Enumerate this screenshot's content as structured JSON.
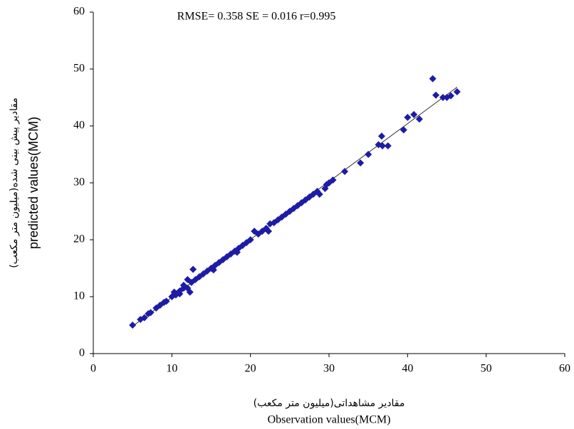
{
  "chart_data": {
    "type": "scatter",
    "annotation": "RMSE= 0.358  SE = 0.016  r=0.995",
    "y_label_fa": "مقادیر پیش بینی شده(میلیون متر مکعب)",
    "y_label": "predicted values(MCM)",
    "x_label_fa": "مقادیر مشاهداتی(میلیون متر مکعب)",
    "x_label": "Observation values(MCM)",
    "color": "#1c1ca6",
    "trendline": true,
    "grid": false,
    "xlim": [
      0,
      60
    ],
    "xticks": [
      0,
      10,
      20,
      30,
      40,
      50,
      60
    ],
    "ylim": [
      0,
      60
    ],
    "yticks": [
      0,
      10,
      20,
      30,
      40,
      50,
      60
    ],
    "x": [
      5,
      6,
      6.5,
      7,
      7.3,
      8,
      8.5,
      9,
      9.3,
      10,
      10.3,
      10.5,
      11,
      11,
      11.5,
      11.5,
      12,
      12,
      12.3,
      12.7,
      12.5,
      13,
      13.5,
      14,
      14.5,
      15,
      15.3,
      15.5,
      16,
      16.5,
      17,
      17.5,
      18,
      18.3,
      18.5,
      19,
      19.5,
      20,
      20.5,
      21,
      21.5,
      22,
      22.3,
      22.5,
      23,
      23.5,
      24,
      24.5,
      25,
      25.5,
      26,
      26.5,
      27,
      27.5,
      28,
      28.5,
      28.8,
      29.5,
      29.7,
      30,
      30.5,
      32,
      34,
      35,
      36.3,
      36.7,
      36.8,
      37.5,
      39.5,
      40,
      40.8,
      41.5,
      43.2,
      43.6,
      44.5,
      45,
      45.5,
      46.3
    ],
    "values": [
      5,
      6,
      6.3,
      7,
      7.2,
      8,
      8.5,
      9,
      9.2,
      10,
      10.8,
      10.3,
      11,
      10.5,
      11.5,
      12,
      11.5,
      13,
      10.8,
      14.8,
      12.5,
      13,
      13.5,
      14,
      14.5,
      15,
      14.7,
      15.5,
      16,
      16.5,
      17,
      17.5,
      18,
      17.8,
      18.5,
      19,
      19.5,
      20,
      21.5,
      21,
      21.5,
      22,
      21.5,
      22.8,
      23,
      23.5,
      24,
      24.5,
      25,
      25.5,
      26,
      26.5,
      27,
      27.5,
      28,
      28.5,
      28,
      29,
      29.7,
      30,
      30.5,
      32,
      33.5,
      35,
      36.7,
      38.2,
      36.5,
      36.5,
      39.3,
      41.5,
      42,
      41.2,
      48.3,
      45.4,
      45,
      45,
      45.3,
      46
    ]
  }
}
